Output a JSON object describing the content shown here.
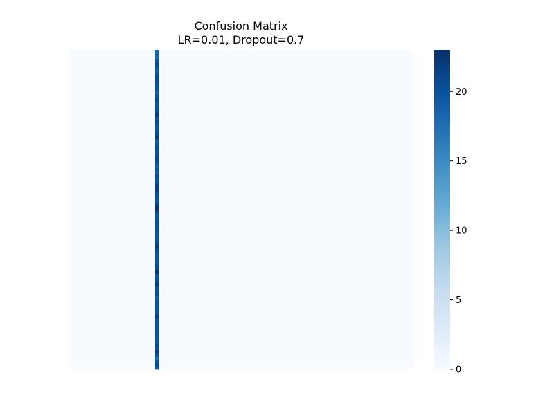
{
  "chart_data": {
    "type": "heatmap",
    "title": "Confusion Matrix",
    "subtitle": "LR=0.01, Dropout=0.7",
    "xlabel": "",
    "ylabel": "",
    "n_rows": 100,
    "n_cols": 100,
    "nonzero_column_index": 25,
    "column_25_values": [
      18,
      19,
      18,
      20,
      21,
      20,
      19,
      20,
      21,
      21,
      20,
      20,
      20,
      19,
      20,
      21,
      20,
      20,
      20,
      21,
      22,
      20,
      21,
      20,
      20,
      20,
      21,
      22,
      19,
      20,
      21,
      20,
      20,
      21,
      21,
      20,
      19,
      20,
      19,
      21,
      20,
      20,
      22,
      22,
      21,
      20,
      20,
      20,
      22,
      23,
      22,
      20,
      20,
      20,
      21,
      20,
      20,
      20,
      20,
      20,
      21,
      22,
      21,
      20,
      20,
      20,
      20,
      21,
      21,
      23,
      20,
      20,
      21,
      22,
      20,
      20,
      21,
      19,
      20,
      20,
      20,
      20,
      20,
      22,
      20,
      20,
      20,
      20,
      20,
      20,
      20,
      20,
      21,
      20,
      22,
      20,
      18,
      20,
      21,
      20
    ],
    "other_cells_value": 0,
    "colorbar": {
      "min": 0,
      "max": 23,
      "ticks": [
        0,
        5,
        10,
        15,
        20
      ],
      "tick_labels": [
        "0",
        "5",
        "10",
        "15",
        "20"
      ],
      "colormap": "Blues"
    },
    "axes_visible": false,
    "grid": false
  }
}
